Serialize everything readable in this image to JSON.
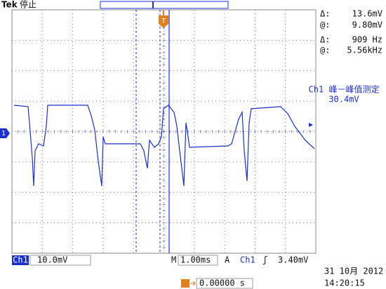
{
  "header": {
    "brand": "Tek",
    "status": "停止"
  },
  "cursors": [
    {
      "label": "Δ:",
      "value": "13.6mV"
    },
    {
      "label": "@:",
      "value": "9.80mV"
    },
    {
      "label": "Δ:",
      "value": "909 Hz"
    },
    {
      "label": "@:",
      "value": "5.56kHz"
    }
  ],
  "measurement": {
    "title": "Ch1 峰－峰值测定",
    "value": "30.4mV"
  },
  "markers": {
    "channel": "1",
    "trigger": "T"
  },
  "footer": {
    "channel": "Ch1",
    "volts_per_div": "10.0mV",
    "time_label": "M",
    "time_per_div": "1.00ms",
    "trigger_label": "A",
    "trigger_source": "Ch1",
    "trigger_slope": "ʃ",
    "trigger_level": "3.40mV",
    "date": "31 10月 2012",
    "time": "14:20:15",
    "trigger_position": "0.00000 s"
  }
}
